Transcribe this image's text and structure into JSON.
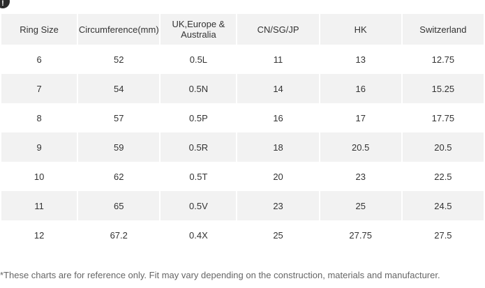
{
  "table": {
    "headers": [
      "Ring Size",
      "Circumference(mm)",
      "UK,Europe & Australia",
      "CN/SG/JP",
      "HK",
      "Switzerland"
    ],
    "rows": [
      [
        "6",
        "52",
        "0.5L",
        "11",
        "13",
        "12.75"
      ],
      [
        "7",
        "54",
        "0.5N",
        "14",
        "16",
        "15.25"
      ],
      [
        "8",
        "57",
        "0.5P",
        "16",
        "17",
        "17.75"
      ],
      [
        "9",
        "59",
        "0.5R",
        "18",
        "20.5",
        "20.5"
      ],
      [
        "10",
        "62",
        "0.5T",
        "20",
        "23",
        "22.5"
      ],
      [
        "11",
        "65",
        "0.5V",
        "23",
        "25",
        "24.5"
      ],
      [
        "12",
        "67.2",
        "0.4X",
        "25",
        "27.75",
        "27.5"
      ]
    ]
  },
  "footnote": "*These charts are for reference only. Fit may vary depending on the construction, materials and manufacturer.",
  "colors": {
    "stripe": "#f2f2f2",
    "text": "#333333"
  },
  "icons": {
    "corner": "info-icon"
  }
}
